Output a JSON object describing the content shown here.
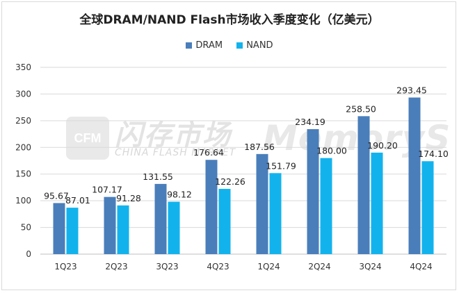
{
  "chart_data": {
    "type": "bar",
    "title": "全球DRAM/NAND Flash市场收入季度变化（亿美元）",
    "xlabel": "",
    "ylabel": "",
    "categories": [
      "1Q23",
      "2Q23",
      "3Q23",
      "4Q23",
      "1Q24",
      "2Q24",
      "3Q24",
      "4Q24"
    ],
    "series": [
      {
        "name": "DRAM",
        "color": "#4a7ebb",
        "values": [
          95.67,
          107.17,
          131.55,
          176.64,
          187.56,
          234.19,
          258.5,
          293.45
        ]
      },
      {
        "name": "NAND",
        "color": "#12b3ed",
        "values": [
          87.01,
          91.28,
          98.12,
          122.26,
          151.79,
          180.0,
          190.2,
          174.1
        ]
      }
    ],
    "ylim": [
      0,
      350
    ],
    "yticks": [
      0,
      50,
      100,
      150,
      200,
      250,
      300,
      350
    ],
    "grid": true,
    "legend_position": "top-center"
  },
  "watermark": {
    "logo_text": "CFM",
    "cn_text": "闪存市场",
    "en_text": "CHINA FLASH MARKET",
    "brand_text": "MemoryS"
  }
}
